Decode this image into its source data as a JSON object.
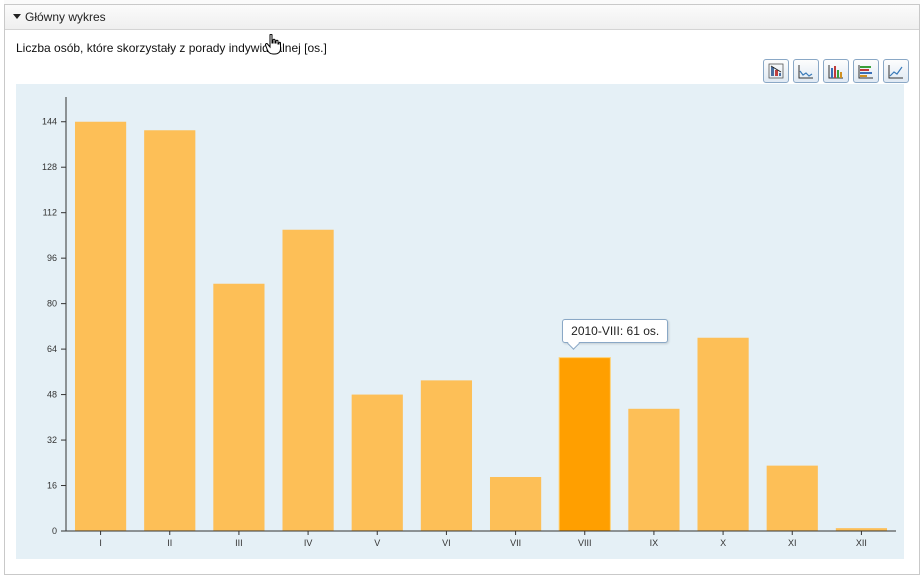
{
  "panel": {
    "header_label": "Główny wykres",
    "subtitle": "Liczba osób, które skorzystały z porady indywidualnej [os.]"
  },
  "toolbar": {
    "buttons": [
      "bar-sort-icon",
      "area-chart-icon",
      "bar-chart-icon",
      "stacked-bar-icon",
      "line-chart-icon"
    ]
  },
  "tooltip": {
    "text": "2010-VIII: 61 os."
  },
  "colors": {
    "bar": "#fdbf57",
    "bar_highlight": "#ff9f00",
    "plot_bg": "#e5f0f6"
  },
  "chart_data": {
    "type": "bar",
    "categories": [
      "I",
      "II",
      "III",
      "IV",
      "V",
      "VI",
      "VII",
      "VIII",
      "IX",
      "X",
      "XI",
      "XII"
    ],
    "values": [
      144,
      141,
      87,
      106,
      48,
      53,
      19,
      61,
      43,
      68,
      23,
      1
    ],
    "highlight_index": 7,
    "ylim": [
      0,
      152
    ],
    "yticks": [
      0,
      16,
      32,
      48,
      64,
      80,
      96,
      112,
      128,
      144
    ],
    "title": "",
    "xlabel": "",
    "ylabel": "",
    "grid": false,
    "legend": "none"
  }
}
